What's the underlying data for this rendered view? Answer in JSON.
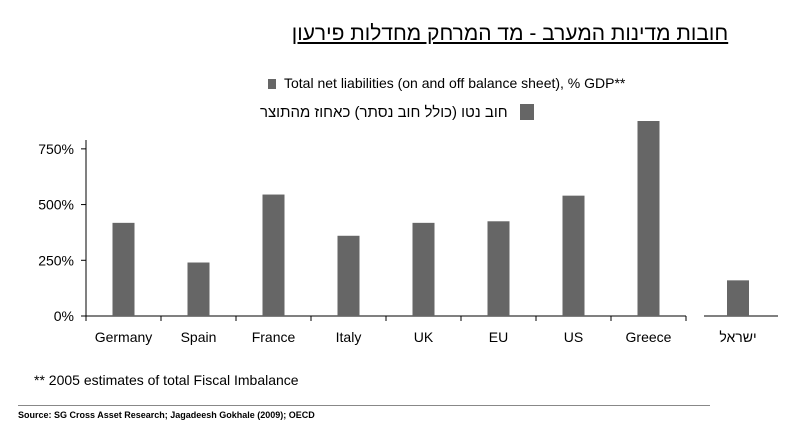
{
  "title": "חובות מדינות המערב - מד המרחק מחדלות פירעון",
  "legend": {
    "english": "Total net liabilities (on and off balance sheet), % GDP**",
    "hebrew": "חוב נטו (כולל חוב נסתר) כאחוז מהתוצר"
  },
  "footnote": "** 2005 estimates of total Fiscal Imbalance",
  "source": "Source: SG Cross Asset Research; Jagadeesh Gokhale (2009); OECD",
  "chart_data": {
    "type": "bar",
    "categories": [
      "Germany",
      "Spain",
      "France",
      "Italy",
      "UK",
      "EU",
      "US",
      "Greece",
      "ישראל"
    ],
    "series": [
      {
        "values": [
          418,
          240,
          545,
          360,
          418,
          425,
          540,
          875,
          160
        ]
      }
    ],
    "ylim": [
      0,
      875
    ],
    "yticks": [
      0,
      250,
      500,
      750
    ],
    "ytick_labels": [
      "0%",
      "250%",
      "500%",
      "750%"
    ],
    "bar_color": "#666666",
    "grid": false,
    "legend_position": "top"
  }
}
